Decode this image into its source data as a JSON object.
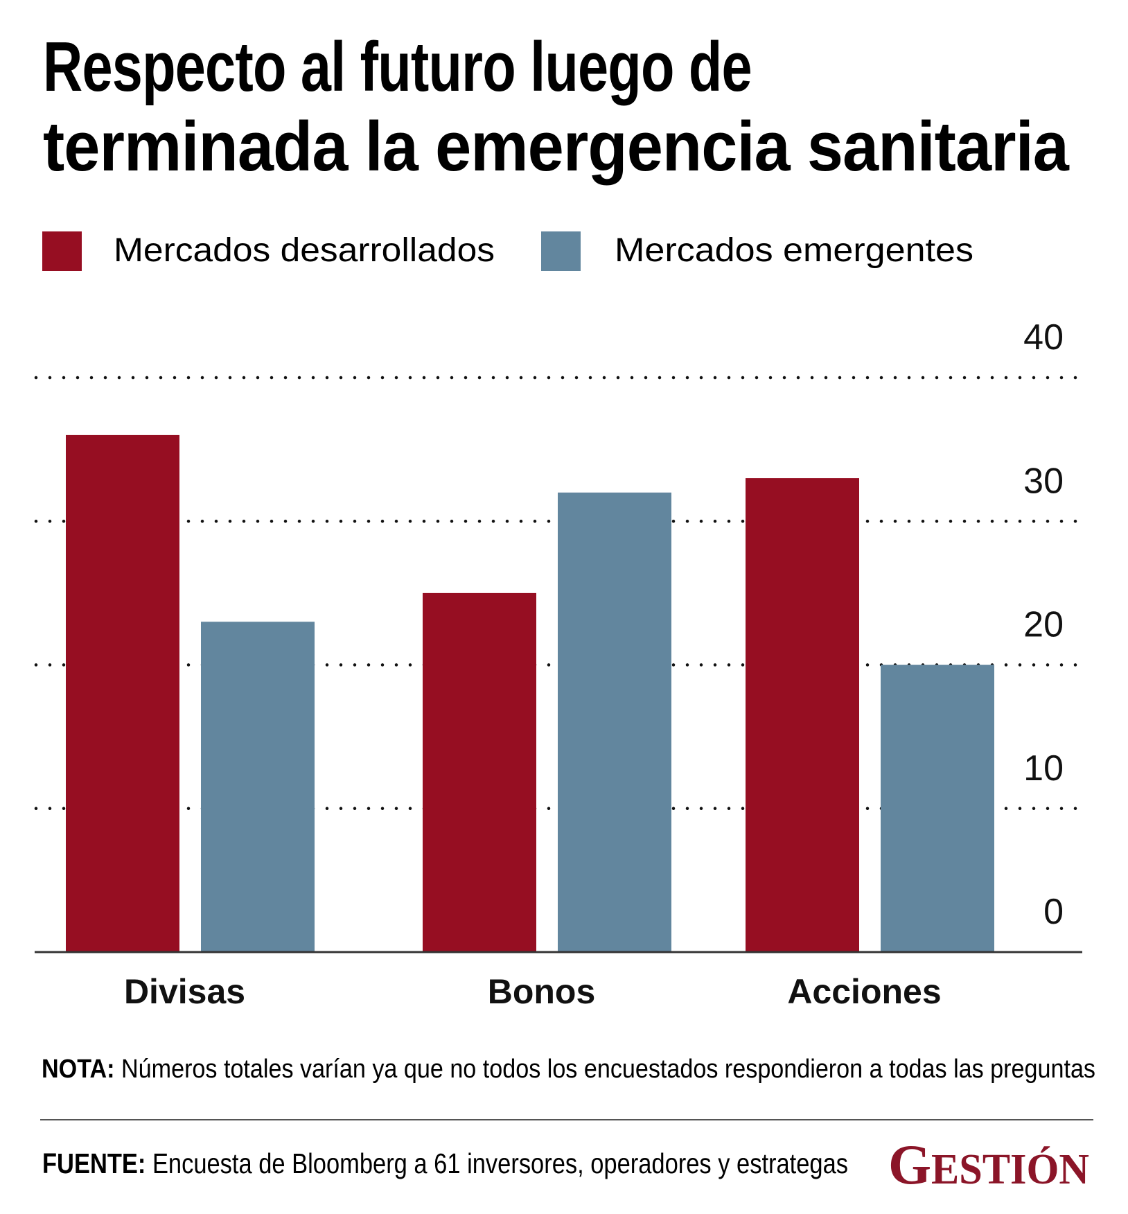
{
  "title": {
    "line1": "Respecto al futuro luego de",
    "line2": "terminada la emergencia sanitaria"
  },
  "legend": [
    {
      "label": "Mercados desarrollados",
      "color": "#960E22"
    },
    {
      "label": "Mercados emergentes",
      "color": "#62869E"
    }
  ],
  "chart_data": {
    "type": "bar",
    "title": "Respecto al futuro luego de terminada la emergencia sanitaria",
    "categories": [
      "Divisas",
      "Bonos",
      "Acciones"
    ],
    "series": [
      {
        "name": "Mercados desarrollados",
        "color": "#960E22",
        "values": [
          36,
          25,
          33
        ]
      },
      {
        "name": "Mercados emergentes",
        "color": "#62869E",
        "values": [
          23,
          32,
          20
        ]
      }
    ],
    "xlabel": "",
    "ylabel": "",
    "ylim": [
      0,
      40
    ],
    "yticks": [
      0,
      10,
      20,
      30,
      40
    ],
    "ytick_labels": [
      "0",
      "10",
      "20",
      "30",
      "40"
    ],
    "yaxis_position": "right",
    "grid": "dotted horizontal",
    "legend_position": "top-left"
  },
  "note": {
    "label": "NOTA:",
    "text": " Números totales varían ya que no todos los encuestados respondieron a todas las preguntas"
  },
  "source": {
    "label": "FUENTE:",
    "text": " Encuesta de Bloomberg a 61 inversores, operadores y estrategas"
  },
  "logo": {
    "initial": "G",
    "rest": "ESTIÓN",
    "color": "#8B1528"
  }
}
